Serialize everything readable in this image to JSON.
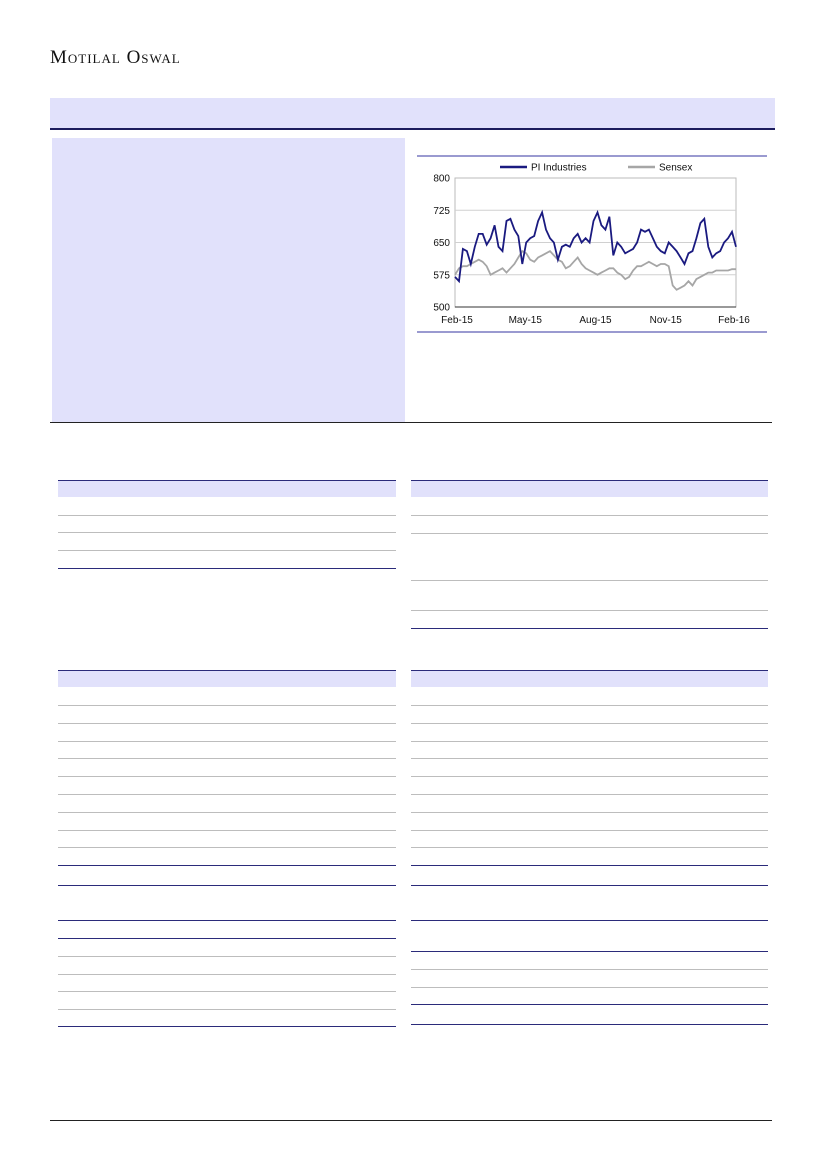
{
  "header": {
    "logo": "Motilal Oswal"
  },
  "chart_data": {
    "type": "line",
    "x_ticks": [
      "Feb-15",
      "May-15",
      "Aug-15",
      "Nov-15",
      "Feb-16"
    ],
    "y_ticks": [
      500,
      575,
      650,
      725,
      800
    ],
    "ylim": [
      500,
      800
    ],
    "grid": "horizontal",
    "legend": "top",
    "series": [
      {
        "name": "PI Industries",
        "color": "#1a1a80",
        "values": [
          570,
          560,
          635,
          630,
          600,
          640,
          670,
          670,
          645,
          660,
          690,
          640,
          630,
          700,
          705,
          680,
          665,
          600,
          650,
          660,
          665,
          700,
          720,
          680,
          660,
          650,
          610,
          640,
          645,
          640,
          660,
          670,
          650,
          660,
          650,
          700,
          720,
          690,
          680,
          710,
          620,
          650,
          640,
          625,
          630,
          635,
          650,
          680,
          675,
          680,
          660,
          640,
          630,
          625,
          650,
          640,
          630,
          615,
          600,
          625,
          630,
          660,
          695,
          705,
          640,
          615,
          625,
          630,
          650,
          660,
          675,
          640
        ]
      },
      {
        "name": "Sensex",
        "color": "#a6a6a6",
        "values": [
          575,
          590,
          595,
          595,
          600,
          605,
          610,
          605,
          595,
          575,
          580,
          585,
          590,
          580,
          590,
          600,
          615,
          630,
          625,
          610,
          605,
          615,
          620,
          625,
          630,
          620,
          610,
          605,
          590,
          595,
          605,
          615,
          600,
          590,
          585,
          580,
          575,
          580,
          585,
          590,
          590,
          580,
          575,
          565,
          570,
          585,
          595,
          595,
          600,
          605,
          600,
          595,
          600,
          600,
          595,
          550,
          540,
          545,
          550,
          560,
          550,
          565,
          570,
          575,
          580,
          580,
          585,
          585,
          585,
          585,
          588,
          588
        ]
      }
    ]
  }
}
